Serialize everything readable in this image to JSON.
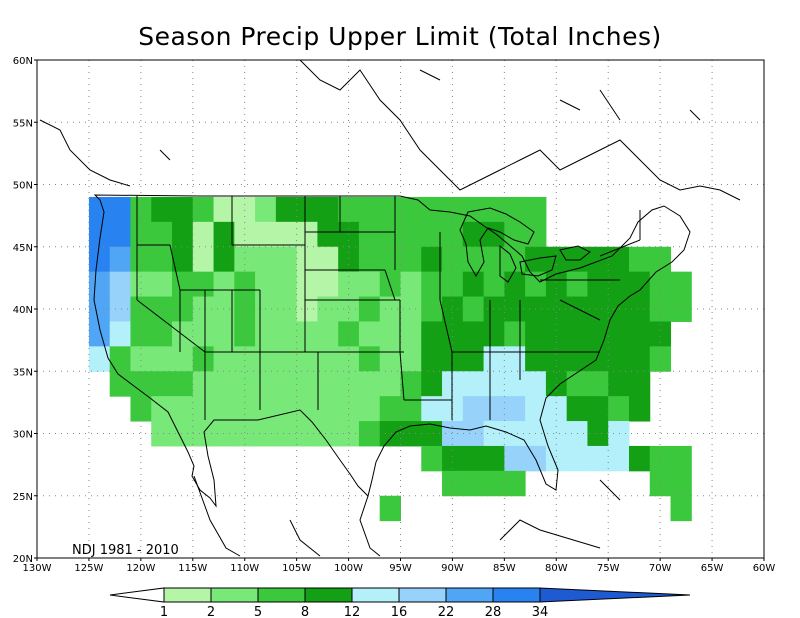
{
  "title": "Season Precip Upper Limit (Total Inches)",
  "period_label": "NDJ 1981 - 2010",
  "lat_labels": [
    "60N",
    "55N",
    "50N",
    "45N",
    "40N",
    "35N",
    "30N",
    "25N",
    "20N"
  ],
  "lon_labels": [
    "130W",
    "125W",
    "120W",
    "115W",
    "110W",
    "105W",
    "100W",
    "95W",
    "90W",
    "85W",
    "80W",
    "75W",
    "70W",
    "65W",
    "60W"
  ],
  "legend": {
    "thresholds": [
      "1",
      "2",
      "5",
      "8",
      "12",
      "16",
      "22",
      "28",
      "34"
    ],
    "colors": [
      "#ffffff",
      "#b4f5a8",
      "#78e878",
      "#3cc83c",
      "#14a014",
      "#b4f0fa",
      "#96d2fa",
      "#50a5f5",
      "#2882f0",
      "#1e5ad2"
    ]
  },
  "map": {
    "lon_range": [
      -130,
      -60
    ],
    "lat_range": [
      20,
      60
    ],
    "grid": "dotted",
    "cell_degrees": 2
  }
}
